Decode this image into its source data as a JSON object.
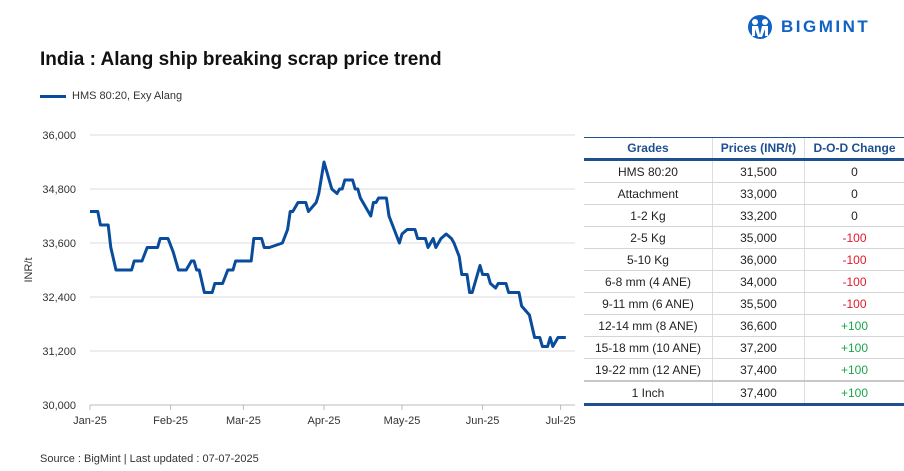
{
  "title": "India : Alang ship breaking scrap price trend",
  "logo": {
    "text": "BIGMINT",
    "color": "#1262c4"
  },
  "source": "Source : BigMint | Last updated : 07-07-2025",
  "chart_data": {
    "type": "line",
    "title": "India : Alang ship breaking scrap price trend",
    "ylabel": "INR/t",
    "xlabel": "",
    "ylim": [
      30000,
      36000
    ],
    "yticks": [
      "30,000",
      "31,200",
      "32,400",
      "33,600",
      "34,800",
      "36,000"
    ],
    "xticks": [
      "Jan-25",
      "Feb-25",
      "Mar-25",
      "Apr-25",
      "May-25",
      "Jun-25",
      "Jul-25"
    ],
    "grid": true,
    "legend": "top-left",
    "series": [
      {
        "name": "HMS 80:20, Exy Alang",
        "color": "#0a4c9c",
        "points": [
          [
            "2025-01-01",
            34300
          ],
          [
            "2025-01-04",
            34300
          ],
          [
            "2025-01-05",
            34000
          ],
          [
            "2025-01-08",
            34000
          ],
          [
            "2025-01-09",
            33500
          ],
          [
            "2025-01-11",
            33000
          ],
          [
            "2025-01-17",
            33000
          ],
          [
            "2025-01-18",
            33200
          ],
          [
            "2025-01-21",
            33200
          ],
          [
            "2025-01-23",
            33500
          ],
          [
            "2025-01-27",
            33500
          ],
          [
            "2025-01-28",
            33700
          ],
          [
            "2025-01-31",
            33700
          ],
          [
            "2025-02-02",
            33400
          ],
          [
            "2025-02-04",
            33000
          ],
          [
            "2025-02-07",
            33000
          ],
          [
            "2025-02-09",
            33200
          ],
          [
            "2025-02-10",
            33200
          ],
          [
            "2025-02-11",
            33000
          ],
          [
            "2025-02-12",
            33000
          ],
          [
            "2025-02-14",
            32500
          ],
          [
            "2025-02-17",
            32500
          ],
          [
            "2025-02-18",
            32700
          ],
          [
            "2025-02-21",
            32700
          ],
          [
            "2025-02-23",
            33000
          ],
          [
            "2025-02-25",
            33000
          ],
          [
            "2025-02-26",
            33200
          ],
          [
            "2025-03-04",
            33200
          ],
          [
            "2025-03-05",
            33700
          ],
          [
            "2025-03-08",
            33700
          ],
          [
            "2025-03-09",
            33500
          ],
          [
            "2025-03-11",
            33500
          ],
          [
            "2025-03-16",
            33600
          ],
          [
            "2025-03-18",
            33900
          ],
          [
            "2025-03-19",
            34300
          ],
          [
            "2025-03-20",
            34300
          ],
          [
            "2025-03-22",
            34500
          ],
          [
            "2025-03-25",
            34500
          ],
          [
            "2025-03-26",
            34300
          ],
          [
            "2025-03-29",
            34500
          ],
          [
            "2025-03-30",
            34700
          ],
          [
            "2025-04-01",
            35400
          ],
          [
            "2025-04-03",
            35000
          ],
          [
            "2025-04-04",
            34800
          ],
          [
            "2025-04-06",
            34700
          ],
          [
            "2025-04-07",
            34800
          ],
          [
            "2025-04-08",
            34800
          ],
          [
            "2025-04-09",
            35000
          ],
          [
            "2025-04-12",
            35000
          ],
          [
            "2025-04-13",
            34800
          ],
          [
            "2025-04-14",
            34800
          ],
          [
            "2025-04-15",
            34600
          ],
          [
            "2025-04-16",
            34500
          ],
          [
            "2025-04-19",
            34200
          ],
          [
            "2025-04-20",
            34500
          ],
          [
            "2025-04-21",
            34500
          ],
          [
            "2025-04-22",
            34600
          ],
          [
            "2025-04-25",
            34600
          ],
          [
            "2025-04-26",
            34200
          ],
          [
            "2025-04-28",
            33900
          ],
          [
            "2025-04-30",
            33600
          ],
          [
            "2025-05-01",
            33800
          ],
          [
            "2025-05-03",
            33900
          ],
          [
            "2025-05-06",
            33900
          ],
          [
            "2025-05-07",
            33700
          ],
          [
            "2025-05-10",
            33700
          ],
          [
            "2025-05-11",
            33500
          ],
          [
            "2025-05-13",
            33700
          ],
          [
            "2025-05-14",
            33500
          ],
          [
            "2025-05-16",
            33700
          ],
          [
            "2025-05-18",
            33800
          ],
          [
            "2025-05-20",
            33700
          ],
          [
            "2025-05-21",
            33600
          ],
          [
            "2025-05-23",
            33300
          ],
          [
            "2025-05-24",
            32900
          ],
          [
            "2025-05-26",
            32900
          ],
          [
            "2025-05-27",
            32500
          ],
          [
            "2025-05-28",
            32500
          ],
          [
            "2025-05-31",
            33100
          ],
          [
            "2025-06-01",
            32900
          ],
          [
            "2025-06-03",
            32900
          ],
          [
            "2025-06-04",
            32700
          ],
          [
            "2025-06-06",
            32600
          ],
          [
            "2025-06-07",
            32700
          ],
          [
            "2025-06-10",
            32700
          ],
          [
            "2025-06-11",
            32500
          ],
          [
            "2025-06-15",
            32500
          ],
          [
            "2025-06-16",
            32200
          ],
          [
            "2025-06-19",
            32000
          ],
          [
            "2025-06-21",
            31500
          ],
          [
            "2025-06-23",
            31500
          ],
          [
            "2025-06-24",
            31300
          ],
          [
            "2025-06-26",
            31300
          ],
          [
            "2025-06-27",
            31500
          ],
          [
            "2025-06-28",
            31300
          ],
          [
            "2025-06-30",
            31500
          ],
          [
            "2025-07-03",
            31500
          ]
        ]
      }
    ]
  },
  "table": {
    "headers": [
      "Grades",
      "Prices (INR/t)",
      "D-O-D Change"
    ],
    "rows": [
      [
        "HMS 80:20",
        "31,500",
        "0"
      ],
      [
        "Attachment",
        "33,000",
        "0"
      ],
      [
        "1-2 Kg",
        "33,200",
        "0"
      ],
      [
        "2-5 Kg",
        "35,000",
        "-100"
      ],
      [
        "5-10 Kg",
        "36,000",
        "-100"
      ],
      [
        "6-8 mm (4 ANE)",
        "34,000",
        "-100"
      ],
      [
        "9-11 mm (6 ANE)",
        "35,500",
        "-100"
      ],
      [
        "12-14 mm (8 ANE)",
        "36,600",
        "+100"
      ],
      [
        "15-18 mm (10 ANE)",
        "37,200",
        "+100"
      ],
      [
        "19-22 mm (12 ANE)",
        "37,400",
        "+100"
      ],
      [
        "1 Inch",
        "37,400",
        "+100"
      ]
    ],
    "colors": {
      "negative": "#e0192b",
      "positive": "#1aa64a",
      "header": "#1d4f91"
    }
  }
}
